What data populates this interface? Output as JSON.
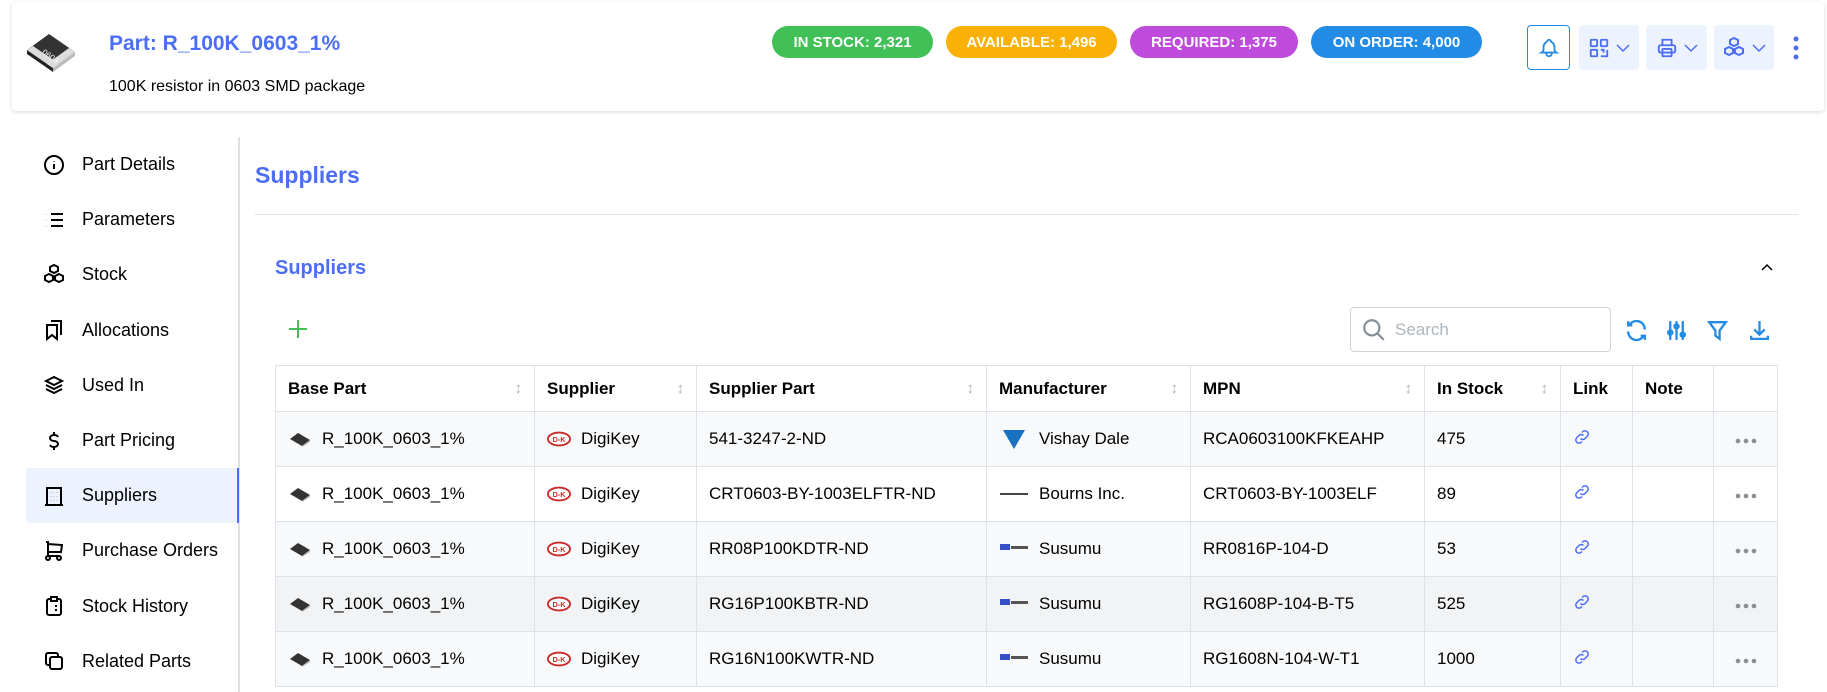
{
  "header": {
    "title": "Part: R_100K_0603_1%",
    "subtitle": "100K resistor in 0603 SMD package",
    "part_icon_label": "0603",
    "badges": [
      {
        "label": "IN STOCK: 2,321",
        "color": "#40c057"
      },
      {
        "label": "AVAILABLE: 1,496",
        "color": "#fab005"
      },
      {
        "label": "REQUIRED: 1,375",
        "color": "#be4bdb"
      },
      {
        "label": "ON ORDER: 4,000",
        "color": "#228be6"
      }
    ]
  },
  "sidebar": {
    "items": [
      {
        "label": "Part Details",
        "icon": "info-circle"
      },
      {
        "label": "Parameters",
        "icon": "list"
      },
      {
        "label": "Stock",
        "icon": "boxes"
      },
      {
        "label": "Allocations",
        "icon": "bookmarks"
      },
      {
        "label": "Used In",
        "icon": "stack"
      },
      {
        "label": "Part Pricing",
        "icon": "currency-dollar"
      },
      {
        "label": "Suppliers",
        "icon": "building",
        "active": true
      },
      {
        "label": "Purchase Orders",
        "icon": "shopping-cart"
      },
      {
        "label": "Stock History",
        "icon": "clipboard-list"
      },
      {
        "label": "Related Parts",
        "icon": "copy"
      }
    ]
  },
  "main": {
    "title": "Suppliers",
    "panel_title": "Suppliers",
    "search_placeholder": "Search",
    "columns": [
      "Base Part",
      "Supplier",
      "Supplier Part",
      "Manufacturer",
      "MPN",
      "In Stock",
      "Link",
      "Note",
      ""
    ],
    "rows": [
      {
        "base_part": "R_100K_0603_1%",
        "supplier": "DigiKey",
        "supplier_part": "541-3247-2-ND",
        "manufacturer": "Vishay Dale",
        "mfr_logo": "VISHAY",
        "mpn": "RCA0603100KFKEAHP",
        "in_stock": "475"
      },
      {
        "base_part": "R_100K_0603_1%",
        "supplier": "DigiKey",
        "supplier_part": "CRT0603-BY-1003ELFTR-ND",
        "manufacturer": "Bourns Inc.",
        "mfr_logo": "BOURNS",
        "mpn": "CRT0603-BY-1003ELF",
        "in_stock": "89"
      },
      {
        "base_part": "R_100K_0603_1%",
        "supplier": "DigiKey",
        "supplier_part": "RR08P100KDTR-ND",
        "manufacturer": "Susumu",
        "mfr_logo": "SUSUMU",
        "mpn": "RR0816P-104-D",
        "in_stock": "53"
      },
      {
        "base_part": "R_100K_0603_1%",
        "supplier": "DigiKey",
        "supplier_part": "RG16P100KBTR-ND",
        "manufacturer": "Susumu",
        "mfr_logo": "SUSUMU",
        "mpn": "RG1608P-104-B-T5",
        "in_stock": "525"
      },
      {
        "base_part": "R_100K_0603_1%",
        "supplier": "DigiKey",
        "supplier_part": "RG16N100KWTR-ND",
        "manufacturer": "Susumu",
        "mfr_logo": "SUSUMU",
        "mpn": "RG1608N-104-W-T1",
        "in_stock": "1000"
      }
    ]
  }
}
